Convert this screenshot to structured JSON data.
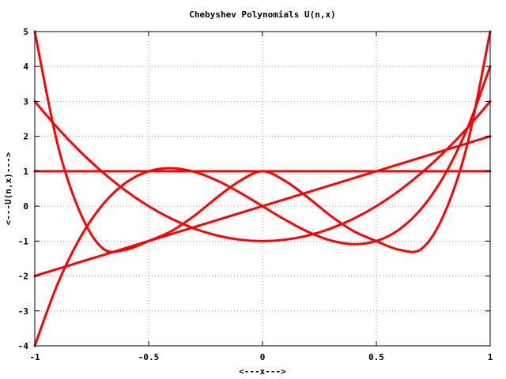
{
  "chart_data": {
    "type": "line",
    "title": "Chebyshev Polynomials U(n,x)",
    "xlabel": "<---x--->",
    "ylabel": "<---U(n,x)--->",
    "xlim": [
      -1,
      1
    ],
    "ylim": [
      -4,
      5
    ],
    "grid": true,
    "legend": "none",
    "x_ticks": [
      "-1",
      "-0.5",
      "0",
      "0.5",
      "1"
    ],
    "x_tick_values": [
      -1,
      -0.5,
      0,
      0.5,
      1
    ],
    "y_ticks": [
      "-4",
      "-3",
      "-2",
      "-1",
      "0",
      "1",
      "2",
      "3",
      "4",
      "5"
    ],
    "y_tick_values": [
      -4,
      -3,
      -2,
      -1,
      0,
      1,
      2,
      3,
      4,
      5
    ],
    "series_color": "#ff0000",
    "x": [
      -1,
      -0.9,
      -0.8,
      -0.7,
      -0.6,
      -0.5,
      -0.4,
      -0.3,
      -0.2,
      -0.1,
      0,
      0.1,
      0.2,
      0.3,
      0.4,
      0.5,
      0.6,
      0.7,
      0.8,
      0.9,
      1
    ],
    "series": [
      {
        "values": [
          1,
          1,
          1,
          1,
          1,
          1,
          1,
          1,
          1,
          1,
          1,
          1,
          1,
          1,
          1,
          1,
          1,
          1,
          1,
          1,
          1
        ]
      },
      {
        "values": [
          -2,
          -1.8,
          -1.6,
          -1.4,
          -1.2,
          -1,
          -0.8,
          -0.6,
          -0.4,
          -0.2,
          0,
          0.2,
          0.4,
          0.6,
          0.8,
          1,
          1.2,
          1.4,
          1.6,
          1.8,
          2
        ]
      },
      {
        "values": [
          3,
          2.24,
          1.56,
          0.96,
          0.44,
          0,
          -0.36,
          -0.64,
          -0.84,
          -0.96,
          -1,
          -0.96,
          -0.84,
          -0.64,
          -0.36,
          0,
          0.44,
          0.96,
          1.56,
          2.24,
          3
        ]
      },
      {
        "values": [
          -4,
          -2.232,
          -0.896,
          0.056,
          0.672,
          1,
          1.088,
          0.984,
          0.736,
          0.392,
          0,
          -0.392,
          -0.736,
          -0.984,
          -1.088,
          -1,
          -0.672,
          -0.056,
          0.896,
          2.232,
          4
        ]
      },
      {
        "values": [
          5,
          1.7776,
          -0.1936,
          -1.2176,
          -1.2464,
          -1,
          -0.7136,
          -0.2784,
          0.2464,
          0.7184,
          1,
          0.7184,
          0.2464,
          -0.2784,
          -0.7136,
          -1,
          -1.2464,
          -1.2176,
          -0.1936,
          1.7776,
          5
        ]
      }
    ]
  }
}
